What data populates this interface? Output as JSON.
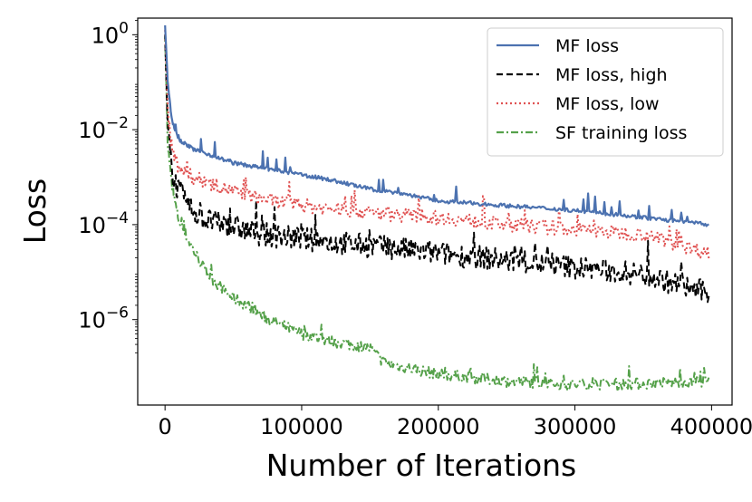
{
  "chart_data": {
    "type": "line",
    "title": "",
    "xlabel": "Number of Iterations",
    "ylabel": "Loss",
    "xlim": [
      -20000,
      415000
    ],
    "ylim_log10": [
      -7.8,
      0.35
    ],
    "y_scale": "log",
    "x_ticks": [
      0,
      100000,
      200000,
      300000,
      400000
    ],
    "x_tick_labels": [
      "0",
      "100000",
      "200000",
      "300000",
      "400000"
    ],
    "y_ticks_log10": [
      0,
      -2,
      -4,
      -6
    ],
    "y_tick_labels": [
      {
        "base": "10",
        "exp": "0"
      },
      {
        "base": "10",
        "exp": "−2"
      },
      {
        "base": "10",
        "exp": "−4"
      },
      {
        "base": "10",
        "exp": "−6"
      }
    ],
    "legend_position": "upper right",
    "series": [
      {
        "name": "MF loss",
        "color": "#4c72b0",
        "dash": "solid",
        "x": [
          0,
          2000,
          5000,
          10000,
          15000,
          20000,
          30000,
          40000,
          50000,
          60000,
          80000,
          100000,
          120000,
          150000,
          175000,
          200000,
          250000,
          300000,
          350000,
          398000
        ],
        "log10_loss": [
          0.2,
          -1.0,
          -1.8,
          -2.2,
          -2.3,
          -2.4,
          -2.5,
          -2.6,
          -2.7,
          -2.75,
          -2.85,
          -2.95,
          -3.05,
          -3.25,
          -3.35,
          -3.5,
          -3.6,
          -3.7,
          -3.85,
          -4.0
        ],
        "noise": 0.04,
        "spike": 0.35
      },
      {
        "name": "MF loss, high",
        "color": "#000000",
        "dash": "dashed",
        "x": [
          0,
          2000,
          5000,
          10000,
          20000,
          30000,
          50000,
          70000,
          100000,
          150000,
          200000,
          250000,
          300000,
          350000,
          398000
        ],
        "log10_loss": [
          0.0,
          -2.0,
          -2.9,
          -3.3,
          -3.7,
          -3.9,
          -4.05,
          -4.2,
          -4.3,
          -4.45,
          -4.6,
          -4.75,
          -4.9,
          -5.05,
          -5.45
        ],
        "noise": 0.25,
        "spike": 0.55
      },
      {
        "name": "MF loss, low",
        "color": "#e05252",
        "dash": "dotted",
        "x": [
          0,
          2000,
          5000,
          10000,
          20000,
          30000,
          50000,
          70000,
          100000,
          150000,
          200000,
          250000,
          300000,
          350000,
          398000
        ],
        "log10_loss": [
          0.1,
          -1.6,
          -2.4,
          -2.8,
          -3.0,
          -3.1,
          -3.3,
          -3.45,
          -3.6,
          -3.75,
          -3.85,
          -4.0,
          -4.1,
          -4.2,
          -4.6
        ],
        "noise": 0.15,
        "spike": 0.5
      },
      {
        "name": "SF training loss",
        "color": "#55a14a",
        "dash": "dashdot",
        "x": [
          0,
          2000,
          5000,
          10000,
          20000,
          30000,
          40000,
          50000,
          60000,
          70000,
          80000,
          100000,
          120000,
          150000,
          160000,
          175000,
          200000,
          250000,
          300000,
          350000,
          398000
        ],
        "log10_loss": [
          0.0,
          -2.3,
          -3.2,
          -3.9,
          -4.5,
          -5.0,
          -5.3,
          -5.55,
          -5.7,
          -5.9,
          -6.05,
          -6.3,
          -6.45,
          -6.6,
          -6.9,
          -7.0,
          -7.15,
          -7.3,
          -7.37,
          -7.35,
          -7.3
        ],
        "noise": 0.12,
        "spike": 0.3
      }
    ]
  }
}
